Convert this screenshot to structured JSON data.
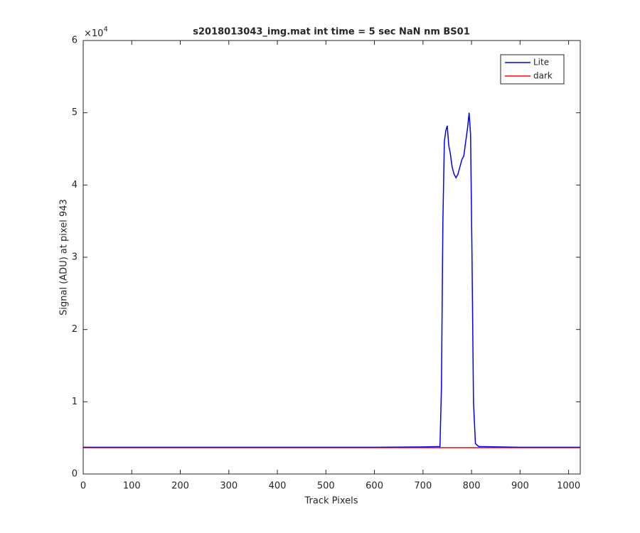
{
  "chart_data": {
    "type": "line",
    "title": "s2018013043_img.mat int time = 5 sec  NaN nm BS01",
    "x_label": "Track Pixels",
    "y_label": "Signal (ADU) at pixel 943",
    "y_multiplier_base": "×10",
    "y_multiplier_exp": "4",
    "x": [
      0,
      100,
      200,
      300,
      400,
      500,
      600,
      700,
      735,
      738,
      741,
      744,
      747,
      750,
      753,
      756,
      760,
      764,
      768,
      772,
      776,
      780,
      784,
      788,
      792,
      795,
      798,
      801,
      804,
      808,
      815,
      900,
      1000,
      1024
    ],
    "series": [
      {
        "name": "Lite",
        "color": "#0000ff",
        "values": [
          3700,
          3700,
          3700,
          3700,
          3700,
          3700,
          3700,
          3750,
          3800,
          12000,
          35000,
          46000,
          47500,
          48200,
          45500,
          44500,
          42500,
          41500,
          41000,
          41500,
          42500,
          43500,
          44000,
          46000,
          48000,
          50000,
          47000,
          30000,
          10000,
          4200,
          3800,
          3700,
          3700,
          3700
        ]
      },
      {
        "name": "dark",
        "color": "#ff0000",
        "values": [
          3650,
          3650,
          3650,
          3650,
          3650,
          3650,
          3650,
          3650,
          3650,
          3650,
          3650,
          3650,
          3650,
          3650,
          3650,
          3650,
          3650,
          3650,
          3650,
          3650,
          3650,
          3650,
          3650,
          3650,
          3650,
          3650,
          3650,
          3650,
          3650,
          3650,
          3650,
          3650,
          3650,
          3650
        ]
      }
    ],
    "xlim": [
      0,
      1024
    ],
    "xticks": [
      0,
      100,
      200,
      300,
      400,
      500,
      600,
      700,
      800,
      900,
      1000
    ],
    "ylim": [
      0,
      60000
    ],
    "yticks": [
      {
        "value": 0,
        "label": "0"
      },
      {
        "value": 10000,
        "label": "1"
      },
      {
        "value": 20000,
        "label": "2"
      },
      {
        "value": 30000,
        "label": "3"
      },
      {
        "value": 40000,
        "label": "4"
      },
      {
        "value": 50000,
        "label": "5"
      },
      {
        "value": 60000,
        "label": "6"
      }
    ],
    "legend": "upper right",
    "grid": false
  }
}
